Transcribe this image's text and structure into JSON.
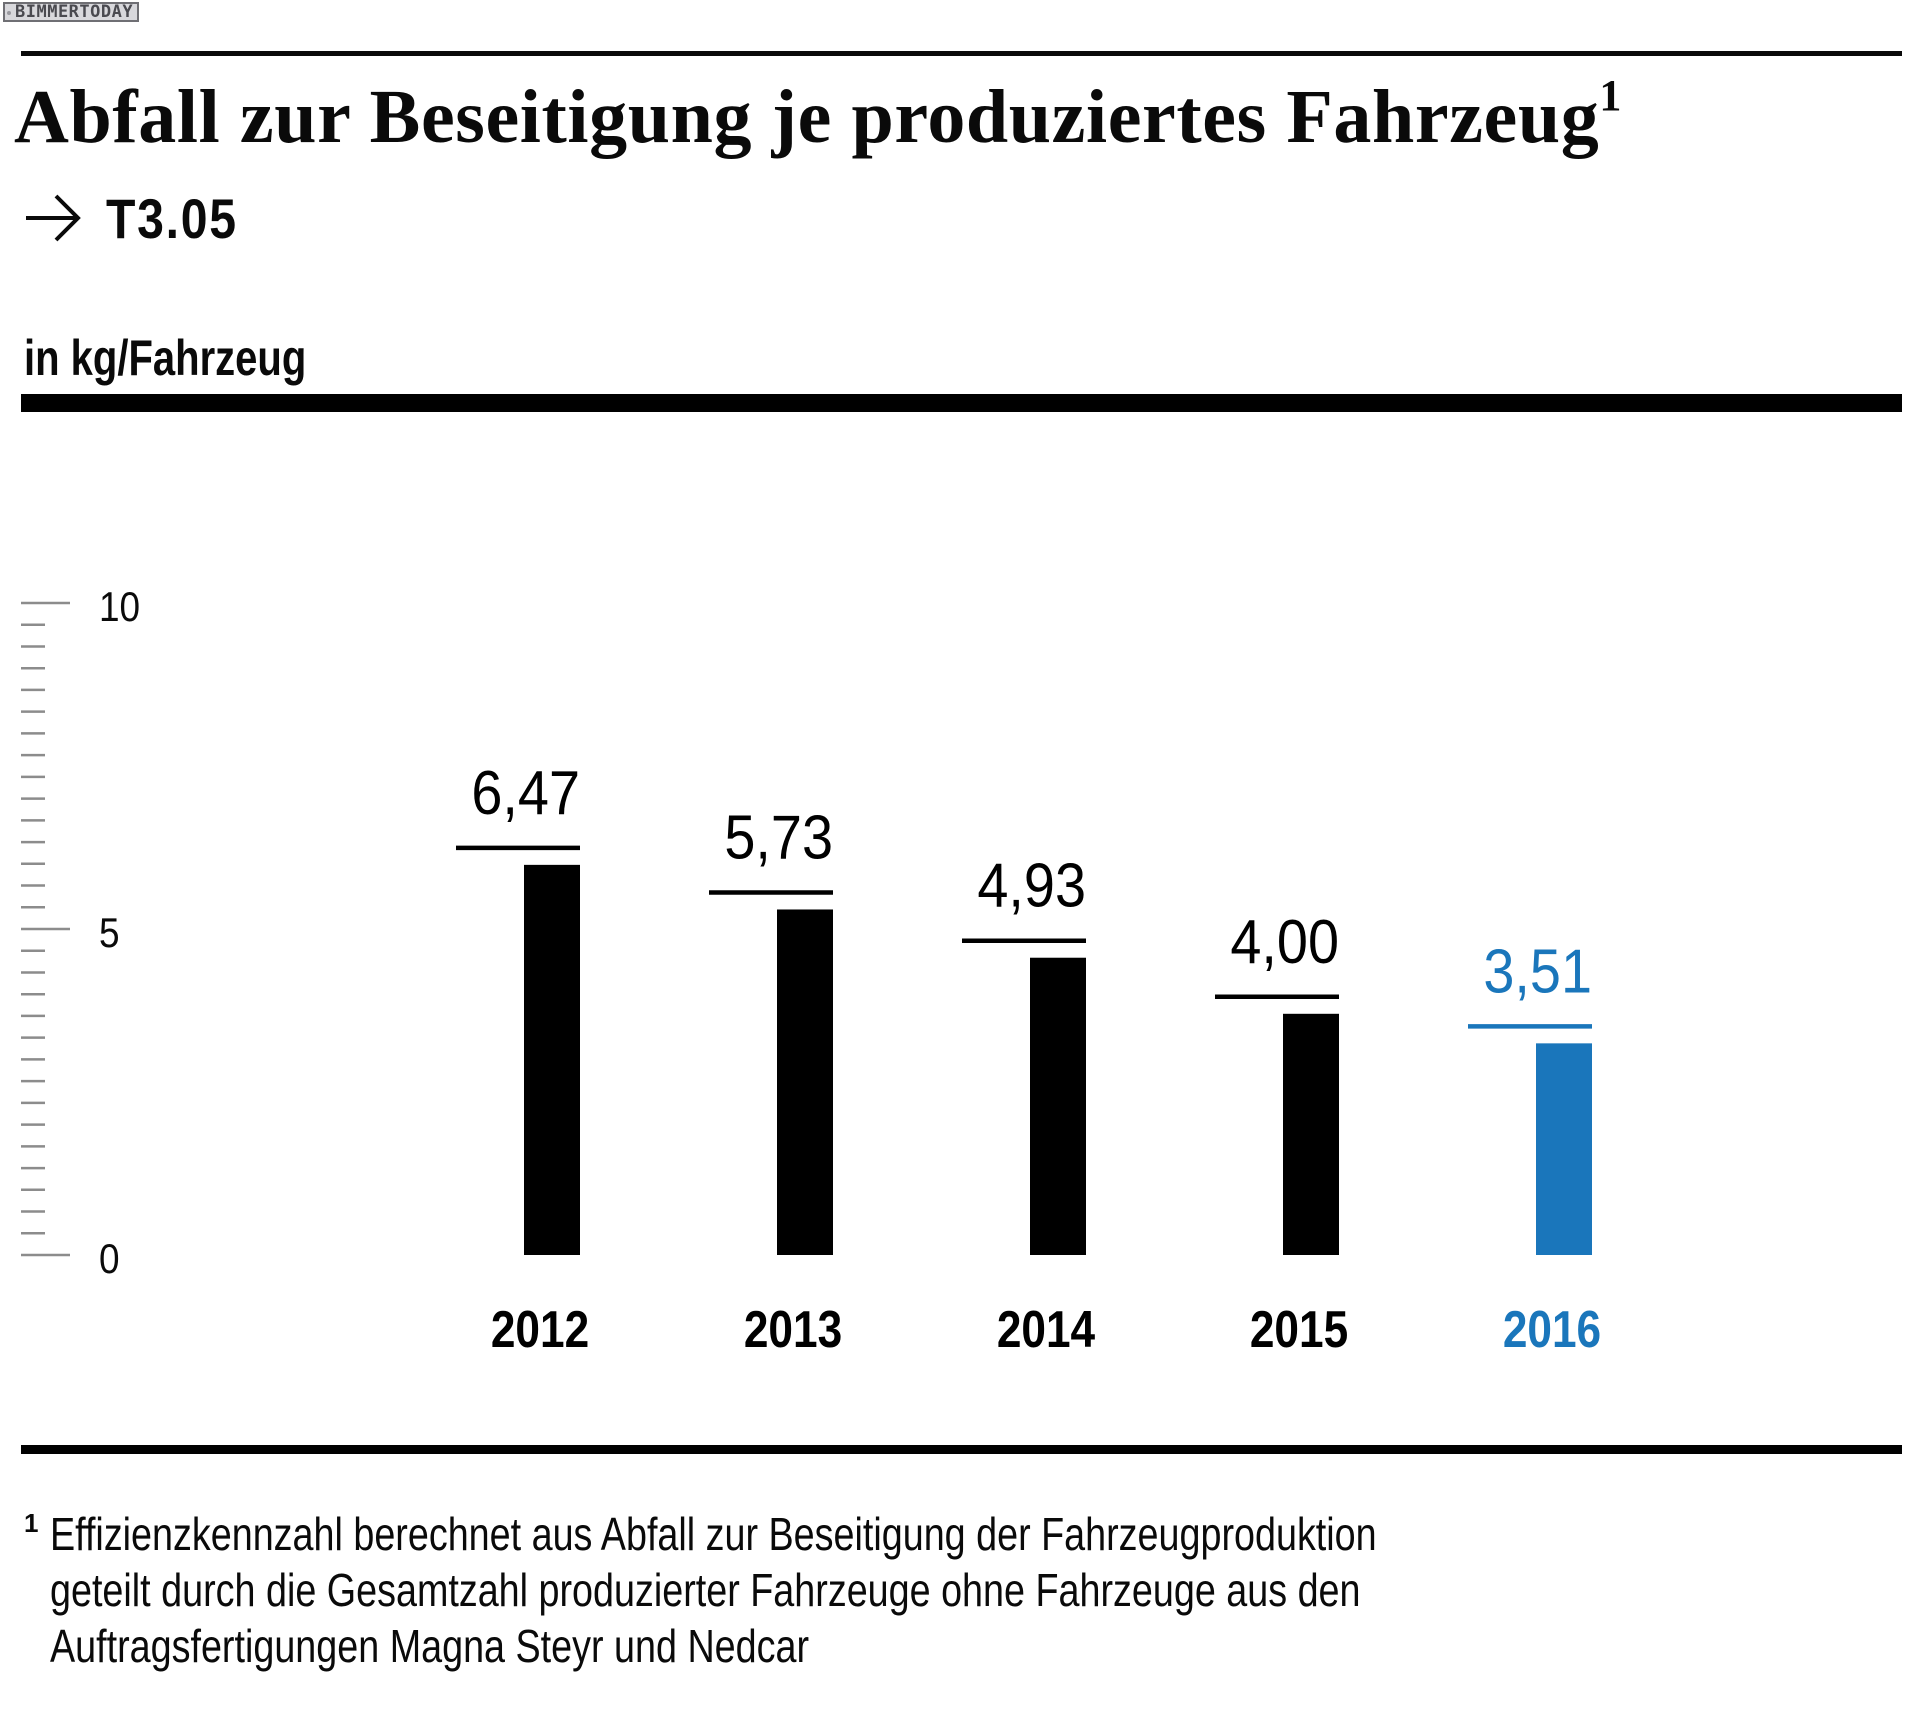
{
  "watermark": "BIMMERTODAY",
  "header": {
    "title": "Abfall zur Beseitigung je produziertes Fahrzeug",
    "title_footnote_mark": "1",
    "reference_icon": "arrow-right-icon",
    "reference": "T3.05",
    "unit_label": "in kg/Fahrzeug"
  },
  "colors": {
    "default_bar": "#000000",
    "highlight": "#1a76bb",
    "tick": "#8c8c8c",
    "text": "#0a0a0a"
  },
  "chart_data": {
    "type": "bar",
    "title": "Abfall zur Beseitigung je produziertes Fahrzeug",
    "ylabel": "in kg/Fahrzeug",
    "xlabel": "",
    "categories": [
      "2012",
      "2013",
      "2014",
      "2015",
      "2016"
    ],
    "values": [
      6.47,
      5.73,
      4.93,
      4.0,
      3.51
    ],
    "value_labels": [
      "6,47",
      "5,73",
      "4,93",
      "4,00",
      "3,51"
    ],
    "highlight_index": 4,
    "ylim": [
      0,
      10
    ],
    "y_major_ticks": [
      0,
      5,
      10
    ],
    "y_tick_labels": [
      "0",
      "5",
      "10"
    ],
    "y_minor_tick_count_between_majors": 14,
    "grid": false,
    "legend": "none"
  },
  "footnote": {
    "mark": "1",
    "lines": [
      "Effizienzkennzahl berechnet aus Abfall zur Beseitigung der Fahrzeugproduktion",
      "geteilt durch die Gesamtzahl produzierter Fahrzeuge ohne Fahrzeuge aus den",
      "Auftragsfertigungen Magna Steyr und Nedcar"
    ]
  }
}
